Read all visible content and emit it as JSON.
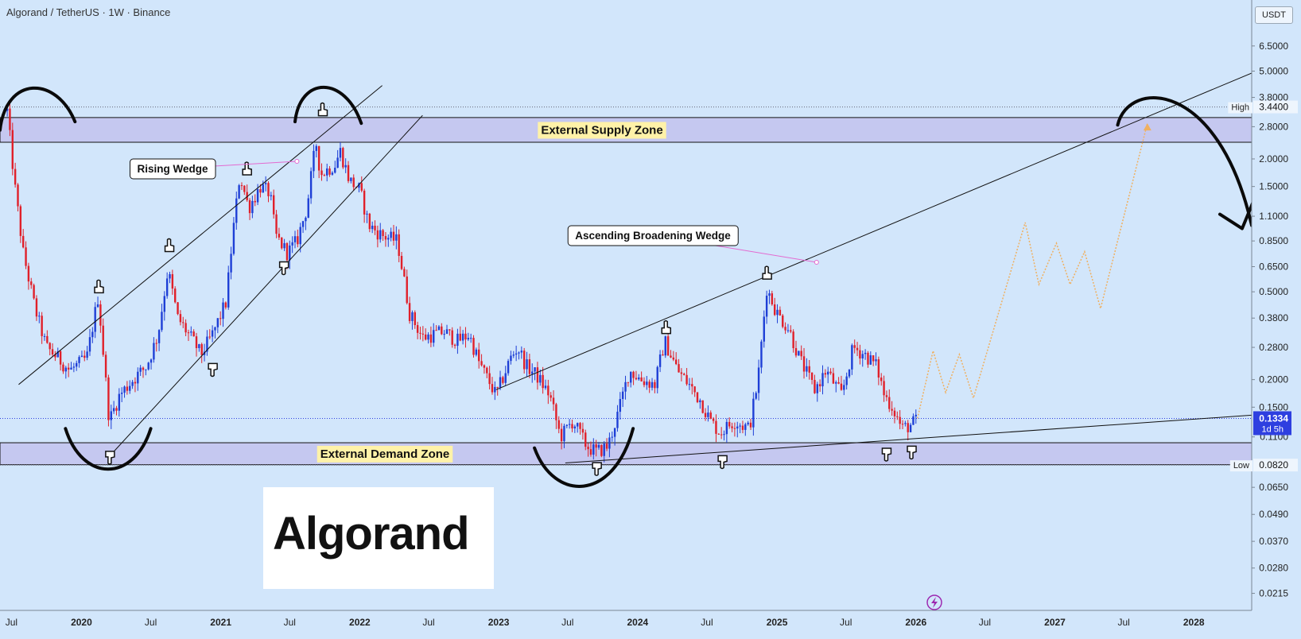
{
  "header": {
    "symbol_line": "Algorand / TetherUS · 1W · Binance",
    "quote_currency": "USDT"
  },
  "logo": {
    "text": "Algorand"
  },
  "colors": {
    "background": "#d2e6fb",
    "candle_up": "#1e3fd6",
    "candle_down": "#e0202a",
    "zone_fill": "#c5c8f0",
    "label_yellow": "#fff2a8",
    "projection": "#f0b060",
    "price_badge": "#2e3fe0"
  },
  "chart_data": {
    "type": "candlestick",
    "title": "Algorand / TetherUS · 1W · Binance",
    "y_scale": "log",
    "ylim": [
      0.018,
      10.5
    ],
    "xlim": [
      "2019-06-01",
      "2028-06-01"
    ],
    "x_tick_labels": [
      "Jul",
      "2020",
      "Jul",
      "2021",
      "Jul",
      "2022",
      "Jul",
      "2023",
      "Jul",
      "2024",
      "Jul",
      "2025",
      "Jul",
      "2026",
      "Jul",
      "2027",
      "Jul",
      "2028"
    ],
    "x_tick_dates": [
      "2019-07-01",
      "2020-01-01",
      "2020-07-01",
      "2021-01-01",
      "2021-07-01",
      "2022-01-01",
      "2022-07-01",
      "2023-01-01",
      "2023-07-01",
      "2024-01-01",
      "2024-07-01",
      "2025-01-01",
      "2025-07-01",
      "2026-01-01",
      "2026-07-01",
      "2027-01-01",
      "2027-07-01",
      "2028-01-01"
    ],
    "y_tick_labels": [
      "6.5000",
      "5.0000",
      "3.8000",
      "2.8000",
      "2.0000",
      "1.5000",
      "1.1000",
      "0.8500",
      "0.6500",
      "0.5000",
      "0.3800",
      "0.2800",
      "0.2000",
      "0.1500",
      "0.1100",
      "0.0650",
      "0.0490",
      "0.0370",
      "0.0280",
      "0.0215"
    ],
    "price_levels": [
      {
        "label": "High",
        "value": "3.4400"
      },
      {
        "label": "Low",
        "value": "0.0820"
      }
    ],
    "current_price": {
      "value": "0.1334",
      "countdown": "1d 5h"
    },
    "zones": [
      {
        "label": "External Supply Zone",
        "low": 2.38,
        "high": 3.08
      },
      {
        "label": "External Demand Zone",
        "low": 0.0823,
        "high": 0.1035
      }
    ],
    "annotations": [
      {
        "text": "Rising Wedge",
        "target_date": "2021-07-20",
        "target_value": 1.95
      },
      {
        "text": "Ascending Broadening Wedge",
        "target_date": "2025-04-15",
        "target_value": 0.68
      }
    ],
    "price_path": [
      [
        "2019-06-20",
        3.3
      ],
      [
        "2019-07-10",
        1.5
      ],
      [
        "2019-08-01",
        0.75
      ],
      [
        "2019-09-01",
        0.42
      ],
      [
        "2019-10-01",
        0.28
      ],
      [
        "2019-11-01",
        0.25
      ],
      [
        "2019-12-01",
        0.22
      ],
      [
        "2020-01-15",
        0.25
      ],
      [
        "2020-02-14",
        0.48
      ],
      [
        "2020-03-14",
        0.13
      ],
      [
        "2020-04-10",
        0.17
      ],
      [
        "2020-05-15",
        0.2
      ],
      [
        "2020-06-20",
        0.23
      ],
      [
        "2020-07-20",
        0.32
      ],
      [
        "2020-08-15",
        0.63
      ],
      [
        "2020-09-10",
        0.38
      ],
      [
        "2020-10-20",
        0.3
      ],
      [
        "2020-11-10",
        0.26
      ],
      [
        "2020-12-10",
        0.32
      ],
      [
        "2021-01-15",
        0.45
      ],
      [
        "2021-02-01",
        0.9
      ],
      [
        "2021-02-20",
        1.7
      ],
      [
        "2021-03-15",
        1.2
      ],
      [
        "2021-04-15",
        1.5
      ],
      [
        "2021-05-10",
        1.4
      ],
      [
        "2021-05-25",
        0.9
      ],
      [
        "2021-06-25",
        0.75
      ],
      [
        "2021-07-20",
        0.85
      ],
      [
        "2021-08-15",
        1.2
      ],
      [
        "2021-09-08",
        2.4
      ],
      [
        "2021-09-20",
        1.7
      ],
      [
        "2021-10-10",
        1.8
      ],
      [
        "2021-10-30",
        1.9
      ],
      [
        "2021-11-10",
        2.2
      ],
      [
        "2021-12-05",
        1.6
      ],
      [
        "2022-01-01",
        1.45
      ],
      [
        "2022-01-25",
        1.0
      ],
      [
        "2022-03-01",
        0.9
      ],
      [
        "2022-04-10",
        0.85
      ],
      [
        "2022-05-12",
        0.4
      ],
      [
        "2022-06-15",
        0.31
      ],
      [
        "2022-08-10",
        0.33
      ],
      [
        "2022-09-15",
        0.3
      ],
      [
        "2022-10-15",
        0.32
      ],
      [
        "2022-11-10",
        0.24
      ],
      [
        "2022-12-25",
        0.17
      ],
      [
        "2023-02-01",
        0.25
      ],
      [
        "2023-02-20",
        0.28
      ],
      [
        "2023-03-15",
        0.23
      ],
      [
        "2023-04-10",
        0.21
      ],
      [
        "2023-05-15",
        0.17
      ],
      [
        "2023-06-12",
        0.11
      ],
      [
        "2023-07-15",
        0.13
      ],
      [
        "2023-08-20",
        0.1
      ],
      [
        "2023-09-15",
        0.094
      ],
      [
        "2023-10-15",
        0.1
      ],
      [
        "2023-11-10",
        0.14
      ],
      [
        "2023-12-10",
        0.22
      ],
      [
        "2024-01-10",
        0.2
      ],
      [
        "2024-02-15",
        0.19
      ],
      [
        "2024-03-12",
        0.3
      ],
      [
        "2024-04-15",
        0.22
      ],
      [
        "2024-05-15",
        0.19
      ],
      [
        "2024-06-15",
        0.16
      ],
      [
        "2024-07-10",
        0.13
      ],
      [
        "2024-08-05",
        0.115
      ],
      [
        "2024-09-10",
        0.13
      ],
      [
        "2024-10-20",
        0.12
      ],
      [
        "2024-11-12",
        0.2
      ],
      [
        "2024-12-05",
        0.52
      ],
      [
        "2025-01-01",
        0.4
      ],
      [
        "2025-02-01",
        0.34
      ],
      [
        "2025-03-01",
        0.25
      ],
      [
        "2025-04-10",
        0.18
      ],
      [
        "2025-05-10",
        0.22
      ],
      [
        "2025-06-20",
        0.17
      ],
      [
        "2025-07-20",
        0.28
      ],
      [
        "2025-08-20",
        0.26
      ],
      [
        "2025-09-20",
        0.23
      ],
      [
        "2025-10-10",
        0.17
      ],
      [
        "2025-11-01",
        0.15
      ],
      [
        "2025-11-25",
        0.12
      ],
      [
        "2025-12-20",
        0.125
      ],
      [
        "2026-01-05",
        0.1334
      ]
    ],
    "trendlines": [
      {
        "name": "rising wedge upper",
        "from": [
          "2019-07-20",
          0.19
        ],
        "to": [
          "2022-03-01",
          4.3
        ]
      },
      {
        "name": "rising wedge lower",
        "from": [
          "2020-03-20",
          0.092
        ],
        "to": [
          "2022-06-15",
          3.15
        ]
      },
      {
        "name": "broadening wedge upper",
        "from": [
          "2022-12-25",
          0.18
        ],
        "to": [
          "2028-06-01",
          4.9
        ]
      },
      {
        "name": "broadening wedge lower",
        "from": [
          "2023-06-25",
          0.0838
        ],
        "to": [
          "2028-06-01",
          0.138
        ]
      }
    ],
    "projection_path": [
      [
        "2026-01-05",
        0.1334
      ],
      [
        "2026-02-15",
        0.27
      ],
      [
        "2026-03-20",
        0.175
      ],
      [
        "2026-04-25",
        0.26
      ],
      [
        "2026-06-01",
        0.165
      ],
      [
        "2026-10-15",
        1.03
      ],
      [
        "2026-11-20",
        0.54
      ],
      [
        "2027-01-05",
        0.83
      ],
      [
        "2027-02-10",
        0.54
      ],
      [
        "2027-03-20",
        0.76
      ],
      [
        "2027-05-01",
        0.42
      ],
      [
        "2027-09-01",
        2.9
      ]
    ],
    "markers": [
      {
        "type": "hand-up",
        "date": "2020-02-15",
        "value": 0.52
      },
      {
        "type": "hand-up",
        "date": "2020-08-18",
        "value": 0.8
      },
      {
        "type": "hand-up",
        "date": "2021-03-10",
        "value": 1.78
      },
      {
        "type": "hand-up",
        "date": "2021-09-25",
        "value": 3.3
      },
      {
        "type": "hand-up",
        "date": "2024-03-15",
        "value": 0.34
      },
      {
        "type": "hand-up",
        "date": "2024-12-05",
        "value": 0.6
      },
      {
        "type": "hand-down",
        "date": "2020-03-15",
        "value": 0.09
      },
      {
        "type": "hand-down",
        "date": "2020-12-10",
        "value": 0.225
      },
      {
        "type": "hand-down",
        "date": "2021-06-15",
        "value": 0.65
      },
      {
        "type": "hand-down",
        "date": "2023-09-15",
        "value": 0.08
      },
      {
        "type": "hand-down",
        "date": "2024-08-10",
        "value": 0.086
      },
      {
        "type": "hand-down",
        "date": "2025-10-15",
        "value": 0.093
      },
      {
        "type": "hand-down",
        "date": "2025-12-20",
        "value": 0.095
      }
    ],
    "hand_drawn_arcs": [
      {
        "type": "top",
        "from": [
          "2019-06-01",
          2.7
        ],
        "to": [
          "2019-12-15",
          2.95
        ]
      },
      {
        "type": "top",
        "from": [
          "2021-07-15",
          2.95
        ],
        "to": [
          "2022-01-05",
          2.9
        ]
      },
      {
        "type": "top",
        "from": [
          "2027-06-15",
          2.85
        ],
        "to": [
          "2028-06-01",
          1.0
        ]
      },
      {
        "type": "bottom",
        "from": [
          "2019-11-20",
          0.12
        ],
        "to": [
          "2020-07-01",
          0.12
        ]
      },
      {
        "type": "bottom",
        "from": [
          "2023-04-05",
          0.098
        ],
        "to": [
          "2023-12-20",
          0.12
        ]
      }
    ],
    "grid": false,
    "legend": "none"
  }
}
